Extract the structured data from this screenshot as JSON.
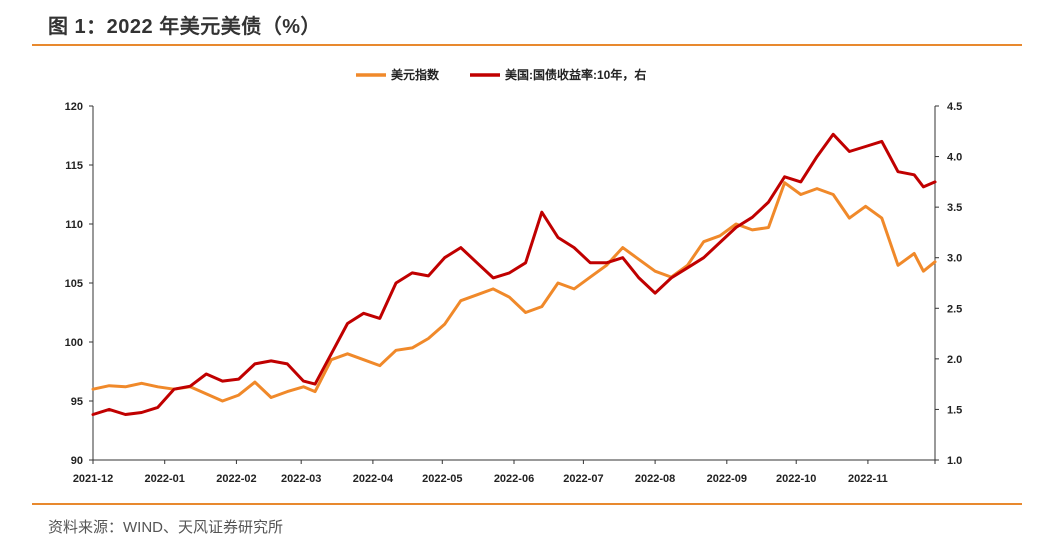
{
  "header": {
    "title": "图 1：2022 年美元美债（%）"
  },
  "footer": {
    "source": "资料来源：WIND、天风证券研究所"
  },
  "colors": {
    "accent": "#e8892e",
    "dxy": "#f0892a",
    "yield": "#c00000"
  },
  "chart_data": {
    "type": "line",
    "legend_placement": "top-center",
    "grid": false,
    "x_ticks": [
      "2021-12",
      "2022-01",
      "2022-02",
      "2022-03",
      "2022-04",
      "2022-05",
      "2022-06",
      "2022-07",
      "2022-08",
      "2022-09",
      "2022-10",
      "2022-11"
    ],
    "x_range": [
      "2021-12-01",
      "2022-11-30"
    ],
    "y_left": {
      "range": [
        90,
        120
      ],
      "ticks": [
        "90",
        "95",
        "100",
        "105",
        "110",
        "115",
        "120"
      ]
    },
    "y_right": {
      "range": [
        1.0,
        4.5
      ],
      "ticks": [
        "1.0",
        "1.5",
        "2.0",
        "2.5",
        "3.0",
        "3.5",
        "4.0",
        "4.5"
      ]
    },
    "series": [
      {
        "name": "美元指数",
        "axis": "left",
        "points": [
          [
            "2021-12-01",
            96.0
          ],
          [
            "2021-12-08",
            96.3
          ],
          [
            "2021-12-15",
            96.2
          ],
          [
            "2021-12-22",
            96.5
          ],
          [
            "2021-12-29",
            96.2
          ],
          [
            "2022-01-05",
            96.0
          ],
          [
            "2022-01-12",
            96.2
          ],
          [
            "2022-01-19",
            95.6
          ],
          [
            "2022-01-26",
            95.0
          ],
          [
            "2022-02-02",
            95.5
          ],
          [
            "2022-02-09",
            96.6
          ],
          [
            "2022-02-16",
            95.3
          ],
          [
            "2022-02-23",
            95.8
          ],
          [
            "2022-03-02",
            96.2
          ],
          [
            "2022-03-07",
            95.8
          ],
          [
            "2022-03-14",
            98.5
          ],
          [
            "2022-03-21",
            99.0
          ],
          [
            "2022-03-28",
            98.5
          ],
          [
            "2022-04-04",
            98.0
          ],
          [
            "2022-04-11",
            99.3
          ],
          [
            "2022-04-18",
            99.5
          ],
          [
            "2022-04-25",
            100.3
          ],
          [
            "2022-05-02",
            101.5
          ],
          [
            "2022-05-09",
            103.5
          ],
          [
            "2022-05-16",
            104.0
          ],
          [
            "2022-05-23",
            104.5
          ],
          [
            "2022-05-30",
            103.8
          ],
          [
            "2022-06-06",
            102.5
          ],
          [
            "2022-06-13",
            103.0
          ],
          [
            "2022-06-20",
            105.0
          ],
          [
            "2022-06-27",
            104.5
          ],
          [
            "2022-07-04",
            105.5
          ],
          [
            "2022-07-11",
            106.5
          ],
          [
            "2022-07-18",
            108.0
          ],
          [
            "2022-07-25",
            107.0
          ],
          [
            "2022-08-01",
            106.0
          ],
          [
            "2022-08-08",
            105.5
          ],
          [
            "2022-08-15",
            106.5
          ],
          [
            "2022-08-22",
            108.5
          ],
          [
            "2022-08-29",
            109.0
          ],
          [
            "2022-09-05",
            110.0
          ],
          [
            "2022-09-12",
            109.5
          ],
          [
            "2022-09-19",
            109.7
          ],
          [
            "2022-09-26",
            113.5
          ],
          [
            "2022-10-03",
            112.5
          ],
          [
            "2022-10-10",
            113.0
          ],
          [
            "2022-10-17",
            112.5
          ],
          [
            "2022-10-24",
            110.5
          ],
          [
            "2022-10-31",
            111.5
          ],
          [
            "2022-11-07",
            110.5
          ],
          [
            "2022-11-14",
            106.5
          ],
          [
            "2022-11-21",
            107.5
          ],
          [
            "2022-11-25",
            106.0
          ],
          [
            "2022-11-30",
            106.8
          ]
        ]
      },
      {
        "name": "美国:国债收益率:10年，右",
        "axis": "right",
        "points": [
          [
            "2021-12-01",
            1.45
          ],
          [
            "2021-12-08",
            1.5
          ],
          [
            "2021-12-15",
            1.45
          ],
          [
            "2021-12-22",
            1.47
          ],
          [
            "2021-12-29",
            1.52
          ],
          [
            "2022-01-05",
            1.7
          ],
          [
            "2022-01-12",
            1.73
          ],
          [
            "2022-01-19",
            1.85
          ],
          [
            "2022-01-26",
            1.78
          ],
          [
            "2022-02-02",
            1.8
          ],
          [
            "2022-02-09",
            1.95
          ],
          [
            "2022-02-16",
            1.98
          ],
          [
            "2022-02-23",
            1.95
          ],
          [
            "2022-03-02",
            1.78
          ],
          [
            "2022-03-07",
            1.75
          ],
          [
            "2022-03-14",
            2.05
          ],
          [
            "2022-03-21",
            2.35
          ],
          [
            "2022-03-28",
            2.45
          ],
          [
            "2022-04-04",
            2.4
          ],
          [
            "2022-04-11",
            2.75
          ],
          [
            "2022-04-18",
            2.85
          ],
          [
            "2022-04-25",
            2.82
          ],
          [
            "2022-05-02",
            3.0
          ],
          [
            "2022-05-09",
            3.1
          ],
          [
            "2022-05-16",
            2.95
          ],
          [
            "2022-05-23",
            2.8
          ],
          [
            "2022-05-30",
            2.85
          ],
          [
            "2022-06-06",
            2.95
          ],
          [
            "2022-06-13",
            3.45
          ],
          [
            "2022-06-20",
            3.2
          ],
          [
            "2022-06-27",
            3.1
          ],
          [
            "2022-07-04",
            2.95
          ],
          [
            "2022-07-11",
            2.95
          ],
          [
            "2022-07-18",
            3.0
          ],
          [
            "2022-07-25",
            2.8
          ],
          [
            "2022-08-01",
            2.65
          ],
          [
            "2022-08-08",
            2.8
          ],
          [
            "2022-08-15",
            2.9
          ],
          [
            "2022-08-22",
            3.0
          ],
          [
            "2022-08-29",
            3.15
          ],
          [
            "2022-09-05",
            3.3
          ],
          [
            "2022-09-12",
            3.4
          ],
          [
            "2022-09-19",
            3.55
          ],
          [
            "2022-09-26",
            3.8
          ],
          [
            "2022-10-03",
            3.75
          ],
          [
            "2022-10-10",
            4.0
          ],
          [
            "2022-10-17",
            4.22
          ],
          [
            "2022-10-24",
            4.05
          ],
          [
            "2022-10-31",
            4.1
          ],
          [
            "2022-11-07",
            4.15
          ],
          [
            "2022-11-14",
            3.85
          ],
          [
            "2022-11-21",
            3.82
          ],
          [
            "2022-11-25",
            3.7
          ],
          [
            "2022-11-30",
            3.75
          ]
        ]
      }
    ]
  }
}
